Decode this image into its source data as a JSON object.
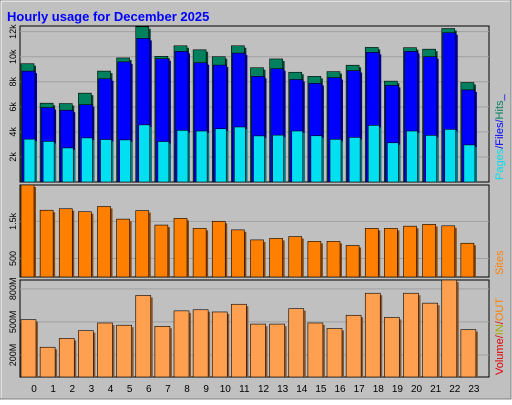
{
  "page": {
    "title": "Hourly usage for December 2025"
  },
  "colors": {
    "background": "#C0C0C0",
    "title": "#0000FF",
    "hits": "#00805C",
    "files": "#0000FF",
    "pages": "#00E0F0",
    "sites": "#FF8000",
    "volume": "#FF9F50",
    "kb_in": "#A8A800",
    "kb_out": "#FF8000",
    "volume_label": "#E00000"
  },
  "chart_data": [
    {
      "type": "bar",
      "name": "hits-files-pages",
      "categories": [
        "0",
        "1",
        "2",
        "3",
        "4",
        "5",
        "6",
        "7",
        "8",
        "9",
        "10",
        "11",
        "12",
        "13",
        "14",
        "15",
        "16",
        "17",
        "18",
        "19",
        "20",
        "21",
        "22",
        "23"
      ],
      "ylim": [
        0,
        12450
      ],
      "y_ticks": [
        2000,
        4000,
        6000,
        8000,
        10000,
        12000
      ],
      "y_tick_labels": [
        "2k",
        "4k",
        "6k",
        "8k",
        "10k",
        "12k"
      ],
      "right_labels": [
        {
          "text": "Pages",
          "color_key": "pages"
        },
        {
          "text": "/",
          "color_key": "files"
        },
        {
          "text": "Files",
          "color_key": "files"
        },
        {
          "text": "/",
          "color_key": "files"
        },
        {
          "text": "Hits",
          "color_key": "hits"
        },
        {
          "text": "_",
          "color_key": "files"
        }
      ],
      "series": [
        {
          "name": "Hits",
          "color_key": "hits",
          "values": [
            9440,
            6290,
            6260,
            7090,
            8850,
            9900,
            12390,
            10030,
            10870,
            10550,
            10000,
            10870,
            9120,
            9820,
            8760,
            8430,
            8810,
            9320,
            10740,
            8050,
            10720,
            10600,
            12250,
            7940
          ]
        },
        {
          "name": "Files",
          "color_key": "files",
          "values": [
            8850,
            5940,
            5730,
            6170,
            8240,
            9590,
            11460,
            9840,
            10420,
            9520,
            9330,
            10290,
            8430,
            9040,
            8180,
            7870,
            8330,
            8890,
            10350,
            7710,
            10420,
            10000,
            11910,
            7350
          ]
        },
        {
          "name": "Pages",
          "color_key": "pages",
          "values": [
            3420,
            3240,
            2720,
            3520,
            3390,
            3360,
            4560,
            3230,
            4120,
            4070,
            4250,
            4390,
            3680,
            3740,
            4070,
            3690,
            3410,
            3560,
            4520,
            3130,
            4070,
            3720,
            4200,
            2960
          ]
        }
      ]
    },
    {
      "type": "bar",
      "name": "sites",
      "categories": [
        "0",
        "1",
        "2",
        "3",
        "4",
        "5",
        "6",
        "7",
        "8",
        "9",
        "10",
        "11",
        "12",
        "13",
        "14",
        "15",
        "16",
        "17",
        "18",
        "19",
        "20",
        "21",
        "22",
        "23"
      ],
      "ylim": [
        0,
        2480
      ],
      "y_ticks": [
        500,
        1500
      ],
      "y_tick_labels": [
        "500",
        "1.5k"
      ],
      "right_labels": [
        {
          "text": "Sites",
          "color_key": "sites"
        }
      ],
      "series": [
        {
          "name": "Sites",
          "color_key": "sites",
          "values": [
            2500,
            1800,
            1840,
            1760,
            1900,
            1560,
            1790,
            1400,
            1580,
            1310,
            1500,
            1270,
            1000,
            1040,
            1090,
            960,
            960,
            850,
            1310,
            1310,
            1370,
            1420,
            1380,
            910
          ]
        }
      ]
    },
    {
      "type": "bar",
      "name": "volume",
      "categories": [
        "0",
        "1",
        "2",
        "3",
        "4",
        "5",
        "6",
        "7",
        "8",
        "9",
        "10",
        "11",
        "12",
        "13",
        "14",
        "15",
        "16",
        "17",
        "18",
        "19",
        "20",
        "21",
        "22",
        "23"
      ],
      "ylim": [
        0,
        880
      ],
      "y_ticks": [
        200,
        500,
        800
      ],
      "y_tick_labels": [
        "200M",
        "500M",
        "800M"
      ],
      "right_labels": [
        {
          "text": "Volume",
          "color_key": "volume_label"
        },
        {
          "text": "/",
          "color_key": "volume_label"
        },
        {
          "text": "IN",
          "color_key": "kb_in"
        },
        {
          "text": "/",
          "color_key": "volume_label"
        },
        {
          "text": "OUT",
          "color_key": "kb_out"
        }
      ],
      "series": [
        {
          "name": "Volume",
          "color_key": "volume",
          "values": [
            520,
            270,
            350,
            420,
            490,
            470,
            740,
            460,
            600,
            610,
            590,
            660,
            480,
            480,
            620,
            490,
            440,
            560,
            760,
            540,
            760,
            670,
            930,
            430
          ]
        }
      ]
    }
  ]
}
